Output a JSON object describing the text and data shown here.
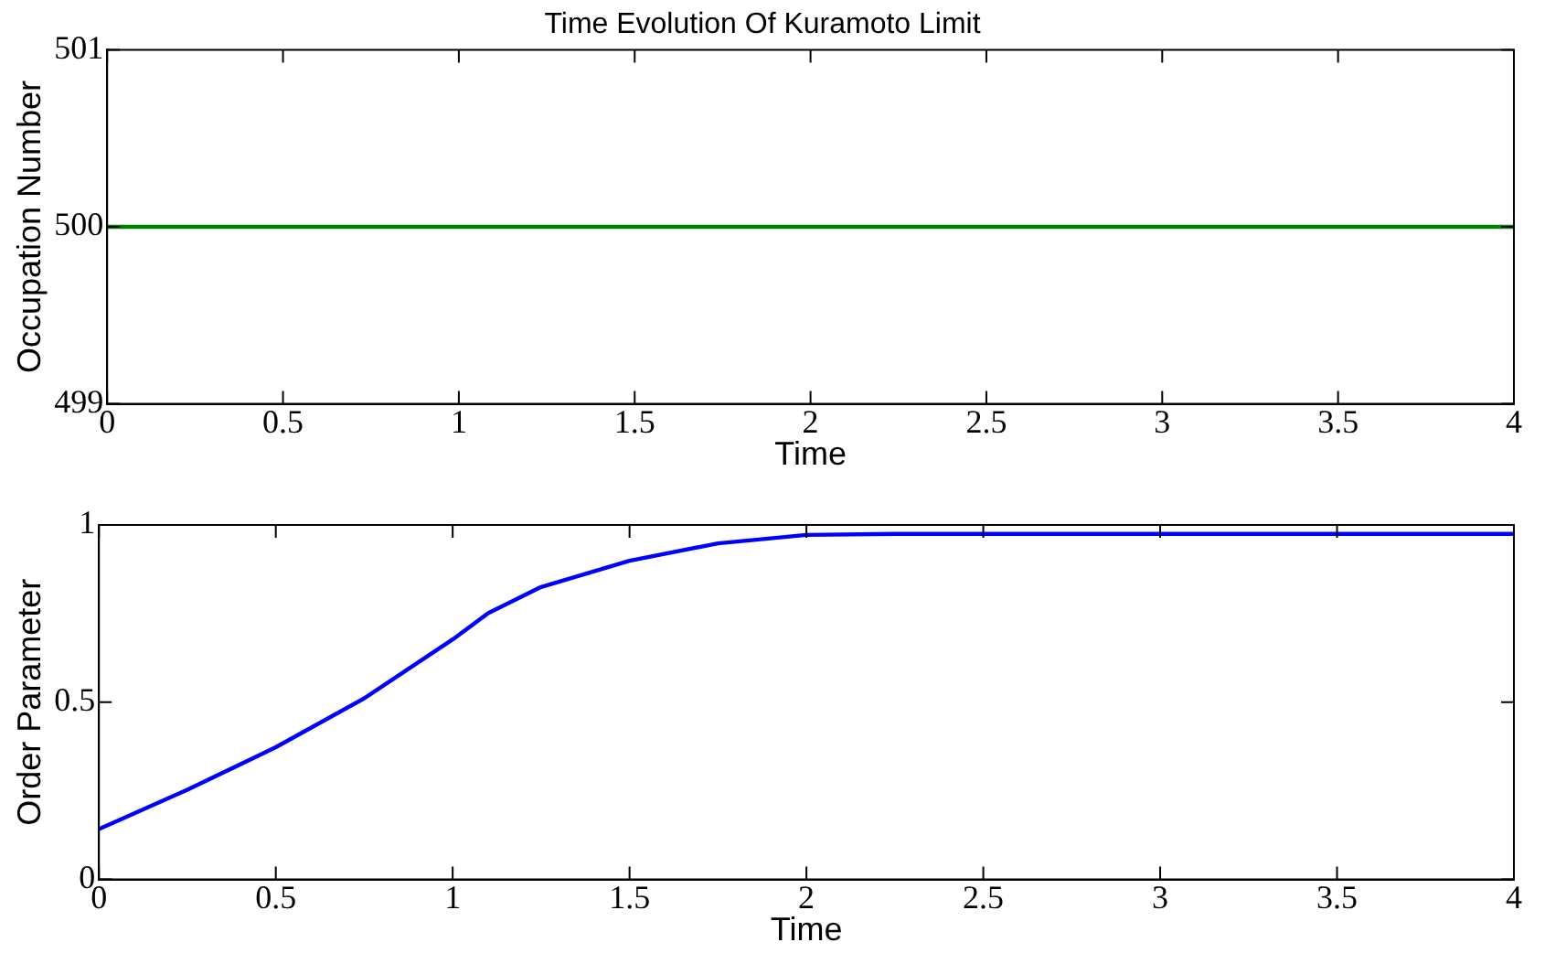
{
  "chart_data": [
    {
      "type": "line",
      "title": "Time Evolution Of Kuramoto Limit",
      "xlabel": "Time",
      "ylabel": "Occupation Number",
      "x": [
        0,
        4
      ],
      "series": [
        {
          "color": "#008000",
          "values": [
            500,
            500
          ]
        }
      ],
      "xlim": [
        0,
        4
      ],
      "xticks": [
        0,
        0.5,
        1,
        1.5,
        2,
        2.5,
        3,
        3.5,
        4
      ],
      "ylim": [
        499,
        501
      ],
      "yticks": [
        499,
        500,
        501
      ],
      "grid": false,
      "legend": false,
      "marker": "none",
      "line_style": "solid"
    },
    {
      "type": "line",
      "xlabel": "Time",
      "ylabel": "Order Parameter",
      "x": [
        0,
        0.25,
        0.5,
        0.75,
        1,
        1.1,
        1.25,
        1.5,
        1.75,
        2,
        2.25,
        2.5,
        3,
        3.5,
        4
      ],
      "series": [
        {
          "color": "#0000ff",
          "values": [
            0.142,
            0.253,
            0.373,
            0.511,
            0.677,
            0.751,
            0.825,
            0.899,
            0.948,
            0.972,
            0.975,
            0.975,
            0.975,
            0.975,
            0.975
          ]
        }
      ],
      "xlim": [
        0,
        4
      ],
      "xticks": [
        0,
        0.5,
        1,
        1.5,
        2,
        2.5,
        3,
        3.5,
        4
      ],
      "ylim": [
        0,
        1
      ],
      "yticks": [
        0,
        0.5,
        1
      ],
      "grid": false,
      "legend": false,
      "marker": "none",
      "line_style": "solid"
    }
  ]
}
